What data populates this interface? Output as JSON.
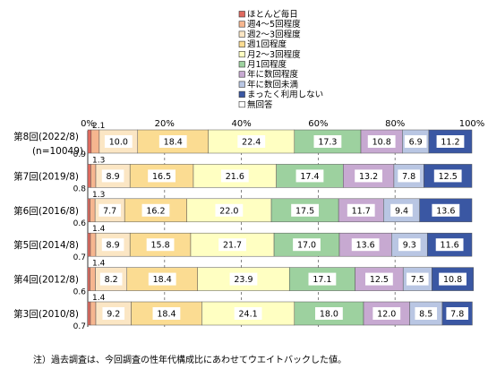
{
  "chart_data": {
    "type": "bar",
    "orientation": "horizontal",
    "stacked": true,
    "xlim": [
      0,
      100
    ],
    "x_ticks": [
      "0%",
      "20%",
      "40%",
      "60%",
      "80%",
      "100%"
    ],
    "legend_position": "top",
    "grid": "dashed vertical lines at 20% intervals",
    "categories": [
      "第8回(2022/8)",
      "第7回(2019/8)",
      "第6回(2016/8)",
      "第5回(2014/8)",
      "第4回(2012/8)",
      "第3回(2010/8)"
    ],
    "category_sublabels": [
      "(n=10049)",
      "",
      "",
      "",
      "",
      ""
    ],
    "series": [
      {
        "name": "ほとんど毎日",
        "color": "#e06a5f",
        "values": [
          0.9,
          0.8,
          0.6,
          0.7,
          0.6,
          0.7
        ]
      },
      {
        "name": "週4～5回程度",
        "color": "#f6b68f",
        "values": [
          2.1,
          1.3,
          1.3,
          1.4,
          1.4,
          1.4
        ]
      },
      {
        "name": "週2～3回程度",
        "color": "#fbe6c4",
        "values": [
          10.0,
          8.9,
          7.7,
          8.9,
          8.2,
          9.2
        ]
      },
      {
        "name": "週1回程度",
        "color": "#fbdc92",
        "values": [
          18.4,
          16.5,
          16.2,
          15.8,
          18.4,
          18.4
        ]
      },
      {
        "name": "月2～3回程度",
        "color": "#ffffc2",
        "values": [
          22.4,
          21.6,
          22.0,
          21.7,
          23.9,
          24.1
        ]
      },
      {
        "name": "月1回程度",
        "color": "#9dd19f",
        "values": [
          17.3,
          17.4,
          17.5,
          17.0,
          17.1,
          18.0
        ]
      },
      {
        "name": "年に数回程度",
        "color": "#c7a9d1",
        "values": [
          10.8,
          13.2,
          11.7,
          13.6,
          12.5,
          12.0
        ]
      },
      {
        "name": "年に数回未満",
        "color": "#b9c6e3",
        "values": [
          6.9,
          7.8,
          9.4,
          9.3,
          7.5,
          8.5
        ]
      },
      {
        "name": "まったく利用しない",
        "color": "#3a57a3",
        "values": [
          11.2,
          12.5,
          13.6,
          11.6,
          10.8,
          7.8
        ]
      },
      {
        "name": "無回答",
        "color": "#ffffff",
        "values": [
          0.0,
          0.0,
          0.0,
          0.0,
          0.0,
          0.0
        ]
      }
    ],
    "outside_labels": {
      "above": [
        "2.1",
        "1.3",
        "1.3",
        "1.4",
        "1.4",
        "1.4"
      ],
      "below": [
        "0.9",
        "0.8",
        "0.6",
        "0.7",
        "0.6",
        "0.7"
      ]
    },
    "footnote": "注）過去調査は、今回調査の性年代構成比にあわせてウエイトバックした値。"
  }
}
